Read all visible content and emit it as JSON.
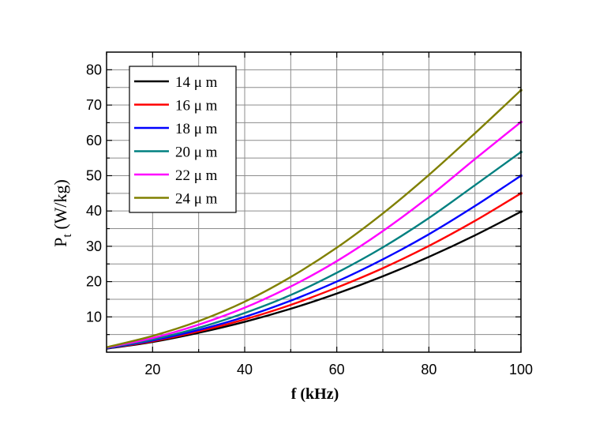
{
  "chart_data": {
    "type": "line",
    "title": "",
    "xlabel": "f (kHz)",
    "ylabel_main": "P",
    "ylabel_sub": "t",
    "ylabel_unit": " (W/kg)",
    "xlim": [
      10,
      100
    ],
    "ylim": [
      0,
      85
    ],
    "xticks": [
      20,
      40,
      60,
      80,
      100
    ],
    "yticks": [
      10,
      20,
      30,
      40,
      50,
      60,
      70,
      80
    ],
    "grid": true,
    "legend_position": "top-left",
    "x": [
      10,
      20,
      30,
      40,
      50,
      60,
      70,
      80,
      90,
      100
    ],
    "series": [
      {
        "name": "14 μ m",
        "color": "#000000",
        "values": [
          1.0,
          2.9,
          5.5,
          8.6,
          12.3,
          16.6,
          21.5,
          27.0,
          33.1,
          39.8
        ]
      },
      {
        "name": "16 μ m",
        "color": "#ff0000",
        "values": [
          1.1,
          3.1,
          5.9,
          9.3,
          13.4,
          18.3,
          23.8,
          30.1,
          37.2,
          45.0
        ]
      },
      {
        "name": "18 μ m",
        "color": "#0000ff",
        "values": [
          1.1,
          3.3,
          6.3,
          10.0,
          14.6,
          20.0,
          26.3,
          33.4,
          41.4,
          50.0
        ]
      },
      {
        "name": "20 μ m",
        "color": "#008080",
        "values": [
          1.2,
          3.6,
          6.9,
          11.1,
          16.2,
          22.5,
          29.7,
          38.0,
          47.3,
          56.7
        ]
      },
      {
        "name": "22 μ m",
        "color": "#ff00ff",
        "values": [
          1.3,
          4.0,
          7.8,
          12.6,
          18.6,
          25.8,
          34.3,
          44.0,
          54.7,
          65.2
        ]
      },
      {
        "name": "24 μ m",
        "color": "#808000",
        "values": [
          1.4,
          4.6,
          8.8,
          14.3,
          21.3,
          29.6,
          39.3,
          50.2,
          62.0,
          74.2
        ]
      }
    ]
  }
}
